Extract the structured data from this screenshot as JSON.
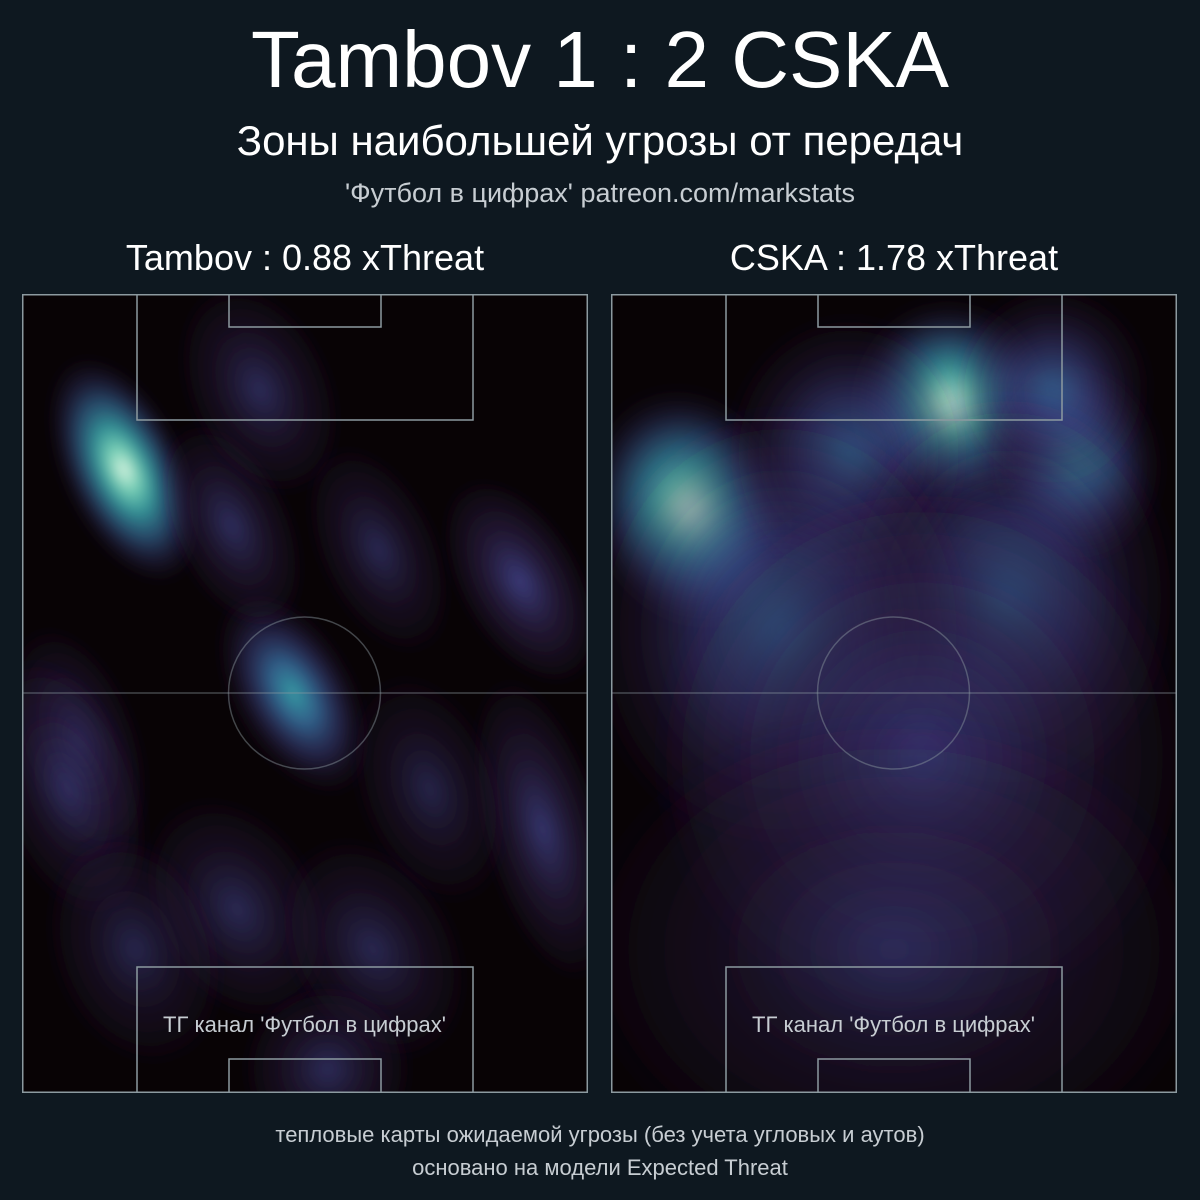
{
  "header": {
    "title": "Tambov 1 : 2 CSKA",
    "subtitle": "Зоны наибольшей угрозы от передач",
    "credit": "'Футбол в цифрах' patreon.com/markstats"
  },
  "footer": {
    "line1": "тепловые карты ожидаемой угрозы (без учета угловых и аутов)",
    "line2": "основано на модели Expected Threat"
  },
  "colors": {
    "background": "#0e1820",
    "pitch_base": "#080305",
    "pitch_lines": "#8c9aa0",
    "colormap": [
      "#080305",
      "#2c1f45",
      "#3d3f82",
      "#3a74a8",
      "#39a7ad",
      "#7fdcc0",
      "#e8f8e8"
    ]
  },
  "chart_data": [
    {
      "type": "heatmap",
      "team": "Tambov",
      "label": "Tambov : 0.88 xThreat",
      "watermark": "ТГ канал 'Футбол в цифрах'",
      "x_range": [
        0,
        100
      ],
      "y_range": [
        0,
        100
      ],
      "attacking_direction": "up",
      "hotspots": [
        {
          "x": 18,
          "y": 78,
          "intensity": 1.0,
          "sx": 5,
          "sy": 7,
          "tilt": -25
        },
        {
          "x": 48,
          "y": 50,
          "intensity": 0.62,
          "sx": 5,
          "sy": 6.5,
          "tilt": -30
        },
        {
          "x": 88,
          "y": 64,
          "intensity": 0.28,
          "sx": 5,
          "sy": 6.5,
          "tilt": -30
        },
        {
          "x": 37,
          "y": 71,
          "intensity": 0.16,
          "sx": 5,
          "sy": 6.5,
          "tilt": -25
        },
        {
          "x": 42,
          "y": 88,
          "intensity": 0.14,
          "sx": 6,
          "sy": 6.5,
          "tilt": -25
        },
        {
          "x": 63,
          "y": 68,
          "intensity": 0.12,
          "sx": 5,
          "sy": 6.5,
          "tilt": -25
        },
        {
          "x": 92,
          "y": 33,
          "intensity": 0.22,
          "sx": 5,
          "sy": 9,
          "tilt": -15
        },
        {
          "x": 10,
          "y": 44,
          "intensity": 0.15,
          "sx": 5,
          "sy": 7,
          "tilt": -20
        },
        {
          "x": 8,
          "y": 38,
          "intensity": 0.12,
          "sx": 6,
          "sy": 8,
          "tilt": -20
        },
        {
          "x": 38,
          "y": 23,
          "intensity": 0.12,
          "sx": 7,
          "sy": 7,
          "tilt": -30
        },
        {
          "x": 62,
          "y": 18,
          "intensity": 0.11,
          "sx": 7,
          "sy": 7,
          "tilt": -30
        },
        {
          "x": 20,
          "y": 18,
          "intensity": 0.09,
          "sx": 7,
          "sy": 7,
          "tilt": -20
        },
        {
          "x": 54,
          "y": 3,
          "intensity": 0.14,
          "sx": 7,
          "sy": 5,
          "tilt": 0
        },
        {
          "x": 72,
          "y": 38,
          "intensity": 0.08,
          "sx": 6,
          "sy": 7,
          "tilt": -20
        }
      ]
    },
    {
      "type": "heatmap",
      "team": "CSKA",
      "label": "CSKA : 1.78 xThreat",
      "watermark": "ТГ канал 'Футбол в цифрах'",
      "x_range": [
        0,
        100
      ],
      "y_range": [
        0,
        100
      ],
      "attacking_direction": "up",
      "hotspots": [
        {
          "x": 14,
          "y": 73,
          "intensity": 1.0,
          "sx": 8,
          "sy": 7,
          "tilt": -20
        },
        {
          "x": 60,
          "y": 86,
          "intensity": 0.92,
          "sx": 8,
          "sy": 6,
          "tilt": -10
        },
        {
          "x": 82,
          "y": 79,
          "intensity": 0.85,
          "sx": 7,
          "sy": 6,
          "tilt": -10
        },
        {
          "x": 42,
          "y": 80,
          "intensity": 0.45,
          "sx": 10,
          "sy": 8,
          "tilt": 0
        },
        {
          "x": 78,
          "y": 88,
          "intensity": 0.45,
          "sx": 8,
          "sy": 6,
          "tilt": 0
        },
        {
          "x": 70,
          "y": 62,
          "intensity": 0.35,
          "sx": 14,
          "sy": 12,
          "tilt": 0
        },
        {
          "x": 30,
          "y": 58,
          "intensity": 0.32,
          "sx": 16,
          "sy": 13,
          "tilt": 0
        },
        {
          "x": 55,
          "y": 42,
          "intensity": 0.22,
          "sx": 22,
          "sy": 16,
          "tilt": 0
        },
        {
          "x": 50,
          "y": 18,
          "intensity": 0.1,
          "sx": 26,
          "sy": 14,
          "tilt": 0
        }
      ]
    }
  ]
}
